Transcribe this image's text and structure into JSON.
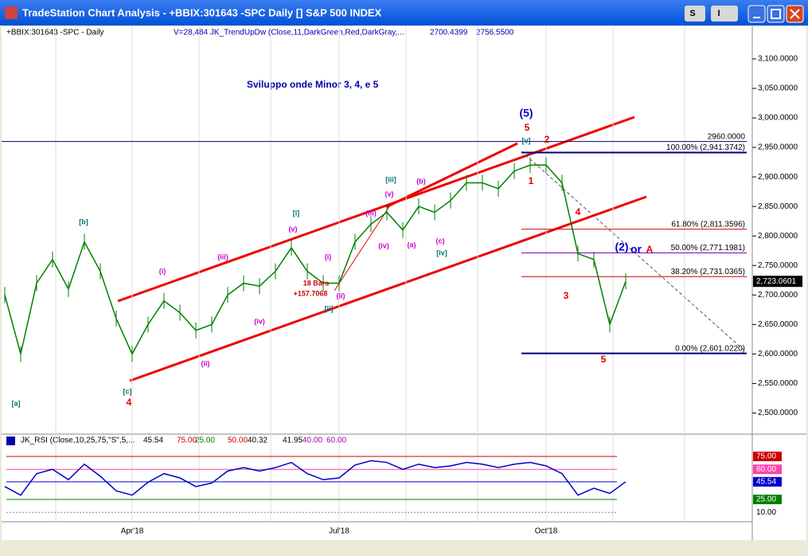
{
  "window": {
    "title": "TradeStation Chart Analysis - +BBIX:301643 -SPC Daily [] S&P 500 INDEX",
    "buttons": [
      "S",
      "I"
    ]
  },
  "chart_data": [
    {
      "type": "line",
      "symbol": "+BBIX:301643 -SPC - Daily",
      "study": "V=28,484 JK_TrendUpDw (Close,11,DarkGreen,Red,DarkGray,...",
      "study_values": [
        "2700.4399",
        "2756.5500"
      ],
      "subtitle": "Sviluppo onde Minor 3, 4, e 5",
      "categories": [
        null,
        null,
        null,
        null,
        null,
        null,
        null,
        null,
        "Apr'18",
        null,
        null,
        null,
        null,
        null,
        null,
        null,
        null,
        null,
        null,
        null,
        null,
        "Jul'18",
        null,
        null,
        null,
        null,
        null,
        null,
        null,
        null,
        null,
        null,
        null,
        null,
        "Oct'18",
        null,
        null,
        null,
        null,
        null
      ],
      "series": [
        {
          "color": "#008000",
          "values": [
            2700,
            2600,
            2720,
            2760,
            2710,
            2790,
            2740,
            2660,
            2600,
            2650,
            2690,
            2670,
            2640,
            2650,
            2700,
            2720,
            2715,
            2740,
            2780,
            2740,
            2720,
            2720,
            2790,
            2820,
            2840,
            2810,
            2850,
            2840,
            2860,
            2890,
            2890,
            2880,
            2910,
            2920,
            2920,
            2890,
            2770,
            2760,
            2650,
            2723.0601
          ]
        }
      ],
      "last_label": "2,723.0601",
      "ylim": [
        2475,
        3135
      ],
      "yticks": [
        {
          "value": 2500,
          "label": "2,500.0000"
        },
        {
          "value": 2550,
          "label": "2,550.0000"
        },
        {
          "value": 2600,
          "label": "2,600.0000"
        },
        {
          "value": 2650,
          "label": "2,650.0000"
        },
        {
          "value": 2700,
          "label": "2,700.0000"
        },
        {
          "value": 2750,
          "label": "2,750.0000"
        },
        {
          "value": 2800,
          "label": "2,800.0000"
        },
        {
          "value": 2850,
          "label": "2,850.0000"
        },
        {
          "value": 2900,
          "label": "2,900.0000"
        },
        {
          "value": 2950,
          "label": "2,950.0000"
        },
        {
          "value": 3000,
          "label": "3,000.0000"
        },
        {
          "value": 3050,
          "label": "3,050.0000"
        },
        {
          "value": 3100,
          "label": "3,100.0000"
        }
      ],
      "levels": [
        {
          "value": 2960,
          "label": "2960.0000",
          "color": "#000080"
        },
        {
          "value": 2941.3742,
          "label": "100.00% (2,941.3742)",
          "color": "#000080"
        },
        {
          "value": 2811.3596,
          "label": "61.80% (2,811.3596)",
          "color": "#cc0000"
        },
        {
          "value": 2771.1981,
          "label": "50.00% (2,771.1981)",
          "color": "#8000c0"
        },
        {
          "value": 2731.0365,
          "label": "38.20% (2,731.0365)",
          "color": "#cc0000"
        },
        {
          "value": 2601.022,
          "label": "0.00% (2,601.0220)",
          "color": "#000080"
        }
      ],
      "annotations": [
        "[a]",
        "[b]",
        "[c]",
        "4",
        "(i)",
        "(ii)",
        "(iii)",
        "(iv)",
        "(v)",
        "[i]",
        "(i)",
        "(ii)",
        "[ii]",
        "(iii)",
        "(iv)",
        "(v)",
        "[iii]",
        "(a)",
        "(b)",
        "(c)",
        "[iv]",
        "[v]",
        "(5)",
        "5",
        "1",
        "2",
        "4",
        "3",
        "5",
        "(2)",
        "or",
        "A",
        "18 Bars",
        "+157.7068"
      ]
    },
    {
      "type": "line",
      "study": "JK_RSI (Close,10,25,75,\"S\",5,...",
      "study_values": [
        "45.54",
        "75.00",
        "25.00",
        "50.00",
        "40.32",
        "41.95",
        "40.00",
        "60.00"
      ],
      "series": [
        {
          "color": "#0000cc",
          "values": [
            40,
            30,
            55,
            60,
            48,
            66,
            52,
            35,
            30,
            45,
            55,
            50,
            40,
            44,
            58,
            62,
            58,
            62,
            68,
            55,
            48,
            50,
            65,
            70,
            68,
            60,
            66,
            62,
            64,
            68,
            66,
            62,
            66,
            68,
            64,
            55,
            30,
            38,
            32,
            45.54
          ]
        }
      ],
      "ylim": [
        0,
        100
      ],
      "yticks": [
        {
          "value": 75,
          "label": "75.00",
          "color": "#cc0000"
        },
        {
          "value": 60,
          "label": "60.00",
          "color": "#ff44aa"
        },
        {
          "value": 45.54,
          "label": "45.54",
          "color": "#0000cc"
        },
        {
          "value": 25,
          "label": "25.00",
          "color": "#008000"
        },
        {
          "value": 10,
          "label": "10.00",
          "color": null
        }
      ]
    }
  ]
}
